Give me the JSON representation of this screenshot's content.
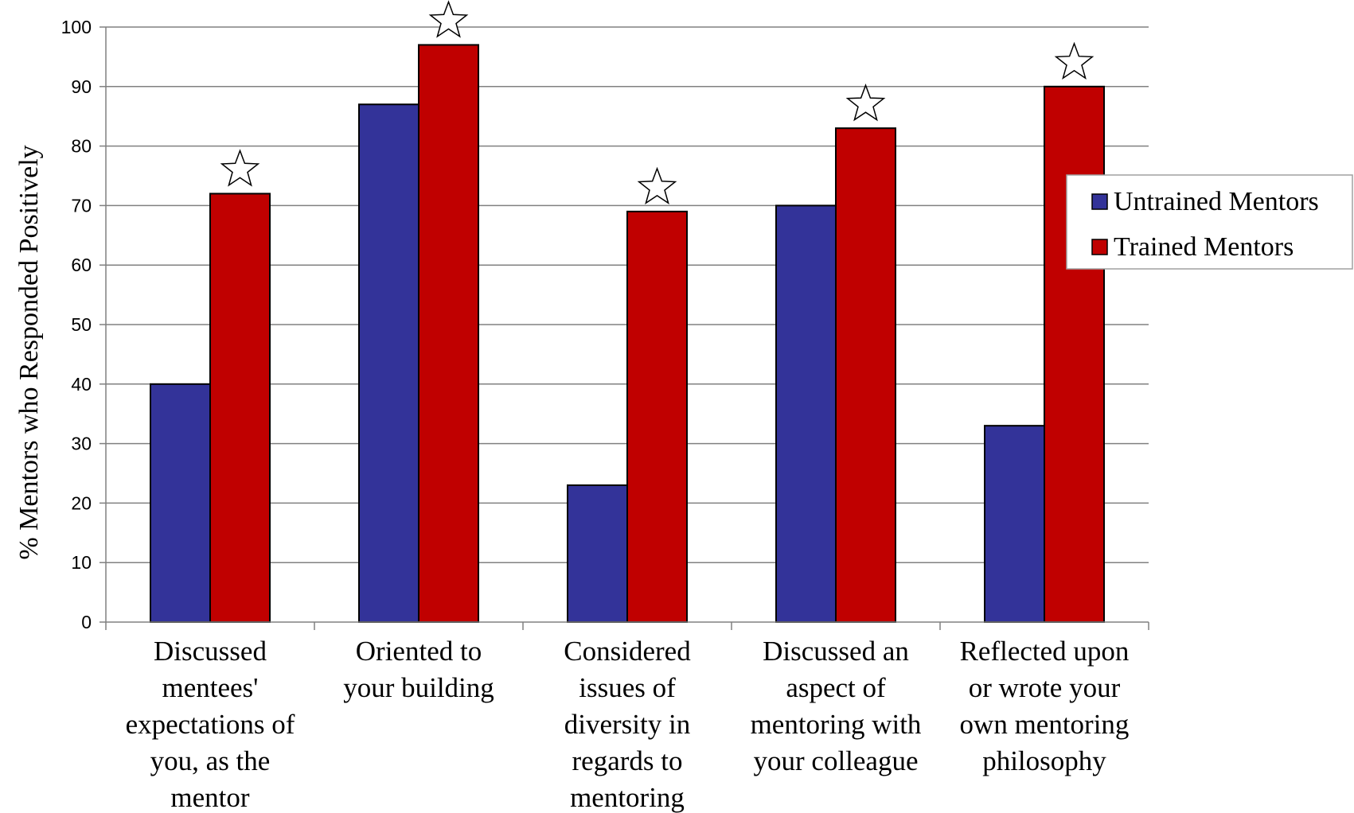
{
  "chart_data": {
    "type": "bar",
    "title": "",
    "xlabel": "",
    "ylabel": "% Mentors who Responded Positively",
    "ylim": [
      0,
      100
    ],
    "yticks": [
      0,
      10,
      20,
      30,
      40,
      50,
      60,
      70,
      80,
      90,
      100
    ],
    "grid": true,
    "legend_position": "right",
    "categories": [
      [
        "Discussed",
        "mentees'",
        "expectations of",
        "you, as the",
        "mentor"
      ],
      [
        "Oriented to",
        "your building"
      ],
      [
        "Considered",
        "issues of",
        "diversity in",
        "regards to",
        "mentoring"
      ],
      [
        "Discussed an",
        "aspect of",
        "mentoring with",
        "your colleague"
      ],
      [
        "Reflected upon",
        "or wrote your",
        "own mentoring",
        "philosophy"
      ]
    ],
    "series": [
      {
        "name": "Untrained Mentors",
        "color": "#333399",
        "values": [
          40,
          87,
          23,
          70,
          33
        ]
      },
      {
        "name": "Trained Mentors",
        "color": "#C00000",
        "values": [
          72,
          97,
          69,
          83,
          90
        ]
      }
    ],
    "significance_markers": {
      "symbol": "star",
      "series": "Trained Mentors",
      "categories": [
        0,
        1,
        2,
        3,
        4
      ]
    }
  }
}
